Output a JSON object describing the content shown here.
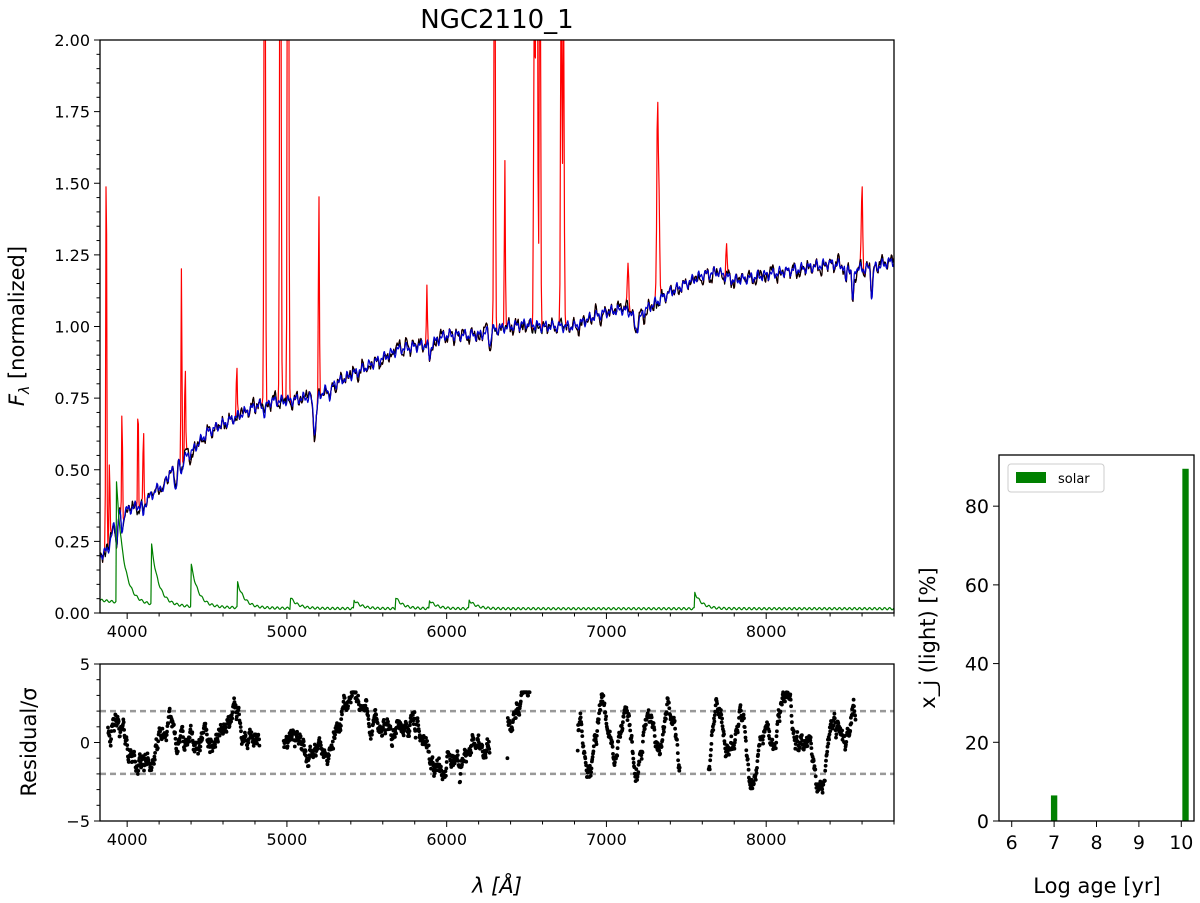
{
  "chart_data": [
    {
      "panel": "spectrum",
      "type": "line",
      "title": "NGC2110_1",
      "xlabel": "",
      "ylabel": "F",
      "ylabel_sub": "λ",
      "ylabel_suffix": " [normalized]",
      "xlim": [
        3830,
        8800
      ],
      "ylim": [
        0,
        2.0
      ],
      "x_ticks": [
        4000,
        5000,
        6000,
        7000,
        8000
      ],
      "y_ticks": [
        "0.00",
        "0.25",
        "0.50",
        "0.75",
        "1.00",
        "1.25",
        "1.50",
        "1.75",
        "2.00"
      ],
      "y_tick_values": [
        0,
        0.25,
        0.5,
        0.75,
        1.0,
        1.25,
        1.5,
        1.75,
        2.0
      ],
      "continuum_knots": [
        [
          3830,
          0.2
        ],
        [
          3880,
          0.22
        ],
        [
          3930,
          0.33
        ],
        [
          4000,
          0.36
        ],
        [
          4100,
          0.38
        ],
        [
          4200,
          0.44
        ],
        [
          4300,
          0.51
        ],
        [
          4400,
          0.56
        ],
        [
          4500,
          0.63
        ],
        [
          4600,
          0.66
        ],
        [
          4700,
          0.69
        ],
        [
          4800,
          0.72
        ],
        [
          4900,
          0.74
        ],
        [
          5000,
          0.74
        ],
        [
          5100,
          0.75
        ],
        [
          5200,
          0.76
        ],
        [
          5300,
          0.8
        ],
        [
          5400,
          0.83
        ],
        [
          5500,
          0.86
        ],
        [
          5600,
          0.89
        ],
        [
          5700,
          0.92
        ],
        [
          5800,
          0.93
        ],
        [
          5900,
          0.94
        ],
        [
          6000,
          0.97
        ],
        [
          6100,
          0.97
        ],
        [
          6200,
          0.97
        ],
        [
          6300,
          0.99
        ],
        [
          6400,
          1.0
        ],
        [
          6500,
          1.01
        ],
        [
          6600,
          1.0
        ],
        [
          6700,
          1.0
        ],
        [
          6800,
          1.0
        ],
        [
          6900,
          1.03
        ],
        [
          7000,
          1.05
        ],
        [
          7100,
          1.06
        ],
        [
          7200,
          1.04
        ],
        [
          7300,
          1.08
        ],
        [
          7400,
          1.12
        ],
        [
          7500,
          1.15
        ],
        [
          7600,
          1.18
        ],
        [
          7700,
          1.19
        ],
        [
          7800,
          1.16
        ],
        [
          7900,
          1.17
        ],
        [
          8000,
          1.18
        ],
        [
          8100,
          1.19
        ],
        [
          8200,
          1.2
        ],
        [
          8300,
          1.21
        ],
        [
          8400,
          1.22
        ],
        [
          8500,
          1.21
        ],
        [
          8600,
          1.2
        ],
        [
          8700,
          1.21
        ],
        [
          8800,
          1.23
        ]
      ],
      "absorption_features": [
        [
          3934,
          0.1,
          5
        ],
        [
          3969,
          0.07,
          5
        ],
        [
          4101,
          0.04,
          6
        ],
        [
          4226,
          0.05,
          5
        ],
        [
          4305,
          0.08,
          8
        ],
        [
          4340,
          0.04,
          6
        ],
        [
          4861,
          0.04,
          8
        ],
        [
          5175,
          0.12,
          10
        ],
        [
          5270,
          0.03,
          8
        ],
        [
          5893,
          0.05,
          6
        ],
        [
          6270,
          0.05,
          6
        ],
        [
          7190,
          0.05,
          15
        ],
        [
          8498,
          0.06,
          5
        ],
        [
          8542,
          0.12,
          6
        ],
        [
          8662,
          0.1,
          6
        ]
      ],
      "emission_lines": [
        [
          3869,
          1.5,
          3
        ],
        [
          3889,
          0.3,
          3
        ],
        [
          3968,
          0.45,
          3
        ],
        [
          4068,
          0.4,
          3
        ],
        [
          4102,
          0.3,
          3
        ],
        [
          4340,
          0.72,
          3
        ],
        [
          4363,
          0.3,
          3
        ],
        [
          4686,
          0.2,
          3
        ],
        [
          4861,
          2.5,
          4
        ],
        [
          4959,
          2.8,
          4
        ],
        [
          5007,
          3.5,
          4
        ],
        [
          5200,
          0.7,
          3
        ],
        [
          5876,
          0.2,
          3
        ],
        [
          6300,
          1.8,
          4
        ],
        [
          6364,
          0.6,
          3
        ],
        [
          6548,
          1.1,
          4
        ],
        [
          6563,
          2.5,
          5
        ],
        [
          6584,
          1.6,
          4
        ],
        [
          6717,
          1.3,
          4
        ],
        [
          6731,
          1.2,
          4
        ],
        [
          7136,
          0.16,
          4
        ],
        [
          7320,
          0.7,
          5
        ],
        [
          7330,
          0.3,
          4
        ],
        [
          7751,
          0.1,
          4
        ],
        [
          8600,
          0.3,
          4
        ]
      ],
      "series": [
        {
          "name": "",
          "role": "observed",
          "color": "#ff0000"
        },
        {
          "name": "",
          "role": "observed-minus-emission",
          "color": "#000000"
        },
        {
          "name": "",
          "role": "model",
          "color": "#0000cc"
        },
        {
          "name": "",
          "role": "lower-component",
          "color": "#008000"
        }
      ]
    },
    {
      "panel": "residual",
      "type": "scatter",
      "xlabel": "λ [Å]",
      "ylabel": "Residual/σ",
      "xlim": [
        3830,
        8800
      ],
      "ylim": [
        -5,
        5
      ],
      "x_ticks": [
        4000,
        5000,
        6000,
        7000,
        8000
      ],
      "y_ticks": [
        "5",
        "0",
        "−5"
      ],
      "y_tick_values": [
        5,
        0,
        -5
      ],
      "reference_lines": [
        2,
        -2
      ],
      "point_ranges": [
        [
          3880,
          4830
        ],
        [
          4980,
          6270
        ],
        [
          6380,
          6520
        ],
        [
          6820,
          7460
        ],
        [
          7640,
          8560
        ]
      ],
      "point_color": "#000000",
      "ref_color": "#999999"
    },
    {
      "panel": "age-histogram",
      "type": "bar",
      "xlabel": "Log age [yr]",
      "ylabel": "x_j (light) [%]",
      "xlim": [
        5.7,
        10.3
      ],
      "ylim": [
        0,
        93
      ],
      "x_ticks": [
        6,
        7,
        8,
        9,
        10
      ],
      "y_ticks": [
        0,
        20,
        40,
        60,
        80
      ],
      "legend": "solar",
      "legend_position": "top-left",
      "color": "#008000",
      "bars": [
        {
          "x": 7.0,
          "value": 6.5
        },
        {
          "x": 10.1,
          "value": 89.5
        }
      ],
      "bar_width": 0.15
    }
  ]
}
